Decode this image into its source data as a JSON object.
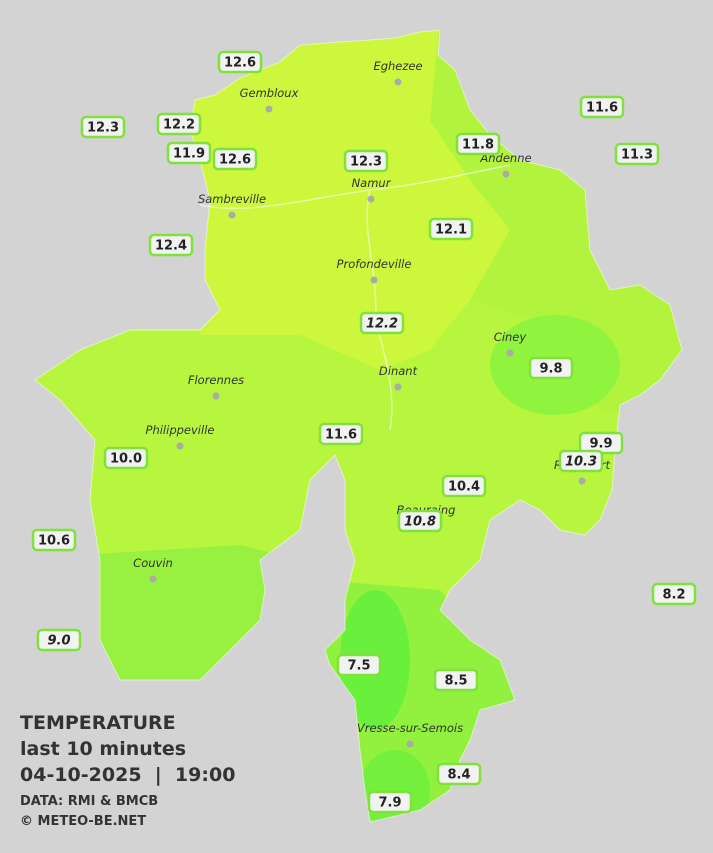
{
  "title": "TEMPERATURE",
  "subtitle": "last 10 minutes",
  "datetime": "04-10-2025  |  19:00",
  "source": "DATA: RMI & BMCB",
  "copyright": "© METEO-BE.NET",
  "cities": [
    "Eghezee",
    "Gembloux",
    "Andenne",
    "Namur",
    "Sambreville",
    "Profondeville",
    "Ciney",
    "Dinant",
    "Florennes",
    "Philippeville",
    "Rochefort",
    "Beauraing",
    "Couvin",
    "Vresse-sur-Semois"
  ],
  "stations": [
    "12.6",
    "12.3",
    "12.2",
    "11.9",
    "12.6",
    "12.3",
    "11.8",
    "11.6",
    "11.3",
    "12.4",
    "12.1",
    "12.2",
    "9.8",
    "11.6",
    "9.9",
    "10.3",
    "10.0",
    "10.4",
    "10.8",
    "10.6",
    "8.2",
    "9.0",
    "7.5",
    "8.5",
    "8.4",
    "7.9"
  ]
}
